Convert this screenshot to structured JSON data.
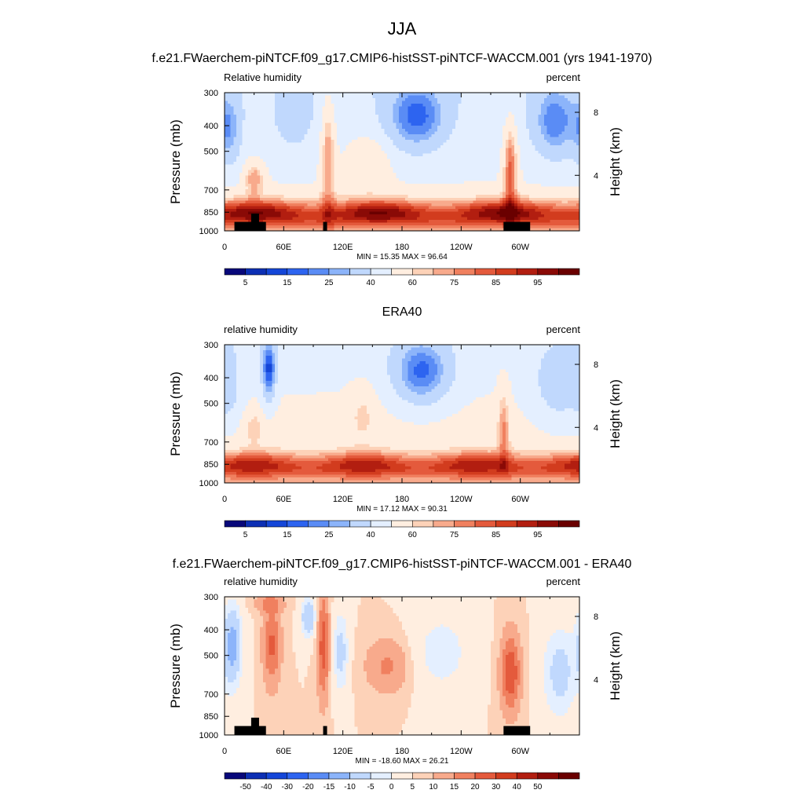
{
  "figure": {
    "title": "JJA",
    "subtitle": "f.e21.FWaerchem-piNTCF.f09_g17.CMIP6-histSST-piNTCF-WACCM.001 (yrs 1941-1970)"
  },
  "colors": {
    "abs_scale": [
      "#08087a",
      "#0c2fb4",
      "#1446d8",
      "#2d64f0",
      "#5a8cf5",
      "#8cb4fa",
      "#c0d8fd",
      "#e4efff",
      "#ffeee0",
      "#fdd2b8",
      "#f8aa8c",
      "#f0805f",
      "#e45a3c",
      "#d23c1e",
      "#b21e10",
      "#8a0a06",
      "#6a0000"
    ],
    "diff_scale": [
      "#08087a",
      "#0c2fb4",
      "#1446d8",
      "#2d64f0",
      "#5a8cf5",
      "#8cb4fa",
      "#c0d8fd",
      "#e4efff",
      "#ffeee0",
      "#fdd2b8",
      "#f8aa8c",
      "#f0805f",
      "#e45a3c",
      "#d23c1e",
      "#b21e10",
      "#8a0a06",
      "#6a0000"
    ],
    "topography": "#000000"
  },
  "chart_data": [
    {
      "type": "heatmap",
      "title": "",
      "left_label": "Relative humidity",
      "right_label": "percent",
      "ylabel": "Pressure (mb)",
      "ylabel_right": "Height (km)",
      "y_ticks": [
        "300",
        "400",
        "500",
        "700",
        "850",
        "1000"
      ],
      "y_tick_values": [
        300,
        400,
        500,
        700,
        850,
        1000
      ],
      "y_right_ticks": [
        "8",
        "4"
      ],
      "y_right_tick_values": [
        8,
        4
      ],
      "x_ticks": [
        "0",
        "60E",
        "120E",
        "180",
        "120W",
        "60W"
      ],
      "x_tick_values": [
        0,
        60,
        120,
        180,
        240,
        300
      ],
      "xlim": [
        0,
        360
      ],
      "ylim": [
        1000,
        300
      ],
      "min_max_label": "MIN = 15.35  MAX = 96.64",
      "min": 15.35,
      "max": 96.64,
      "colorbar_labels": [
        "5",
        "15",
        "25",
        "40",
        "60",
        "75",
        "85",
        "95"
      ],
      "colorbar_label_slots": [
        1,
        3,
        5,
        7,
        9,
        11,
        13,
        15
      ],
      "field": "abs1",
      "topography": true
    },
    {
      "type": "heatmap",
      "title": "ERA40",
      "left_label": "relative humidity",
      "right_label": "percent",
      "ylabel": "Pressure (mb)",
      "ylabel_right": "Height (km)",
      "y_ticks": [
        "300",
        "400",
        "500",
        "700",
        "850",
        "1000"
      ],
      "y_tick_values": [
        300,
        400,
        500,
        700,
        850,
        1000
      ],
      "y_right_ticks": [
        "8",
        "4"
      ],
      "y_right_tick_values": [
        8,
        4
      ],
      "x_ticks": [
        "0",
        "60E",
        "120E",
        "180",
        "120W",
        "60W"
      ],
      "x_tick_values": [
        0,
        60,
        120,
        180,
        240,
        300
      ],
      "xlim": [
        0,
        360
      ],
      "ylim": [
        1000,
        300
      ],
      "min_max_label": "MIN = 17.12  MAX = 90.31",
      "min": 17.12,
      "max": 90.31,
      "colorbar_labels": [
        "5",
        "15",
        "25",
        "40",
        "60",
        "75",
        "85",
        "95"
      ],
      "colorbar_label_slots": [
        1,
        3,
        5,
        7,
        9,
        11,
        13,
        15
      ],
      "field": "abs2",
      "topography": false
    },
    {
      "type": "heatmap",
      "title": "f.e21.FWaerchem-piNTCF.f09_g17.CMIP6-histSST-piNTCF-WACCM.001 - ERA40",
      "left_label": "relative humidity",
      "right_label": "percent",
      "ylabel": "Pressure (mb)",
      "ylabel_right": "Height (km)",
      "y_ticks": [
        "300",
        "400",
        "500",
        "700",
        "850",
        "1000"
      ],
      "y_tick_values": [
        300,
        400,
        500,
        700,
        850,
        1000
      ],
      "y_right_ticks": [
        "8",
        "4"
      ],
      "y_right_tick_values": [
        8,
        4
      ],
      "x_ticks": [
        "0",
        "60E",
        "120E",
        "180",
        "120W",
        "60W"
      ],
      "x_tick_values": [
        0,
        60,
        120,
        180,
        240,
        300
      ],
      "xlim": [
        0,
        360
      ],
      "ylim": [
        1000,
        300
      ],
      "min_max_label": "MIN = -18.60  MAX = 26.21",
      "min": -18.6,
      "max": 26.21,
      "colorbar_labels": [
        "-50",
        "-40",
        "-30",
        "-20",
        "-15",
        "-10",
        "-5",
        "0",
        "5",
        "10",
        "15",
        "20",
        "30",
        "40",
        "50"
      ],
      "colorbar_label_slots": [
        1,
        2,
        3,
        4,
        5,
        6,
        7,
        8,
        9,
        10,
        11,
        12,
        13,
        14,
        15
      ],
      "field": "diff",
      "topography": true
    }
  ]
}
